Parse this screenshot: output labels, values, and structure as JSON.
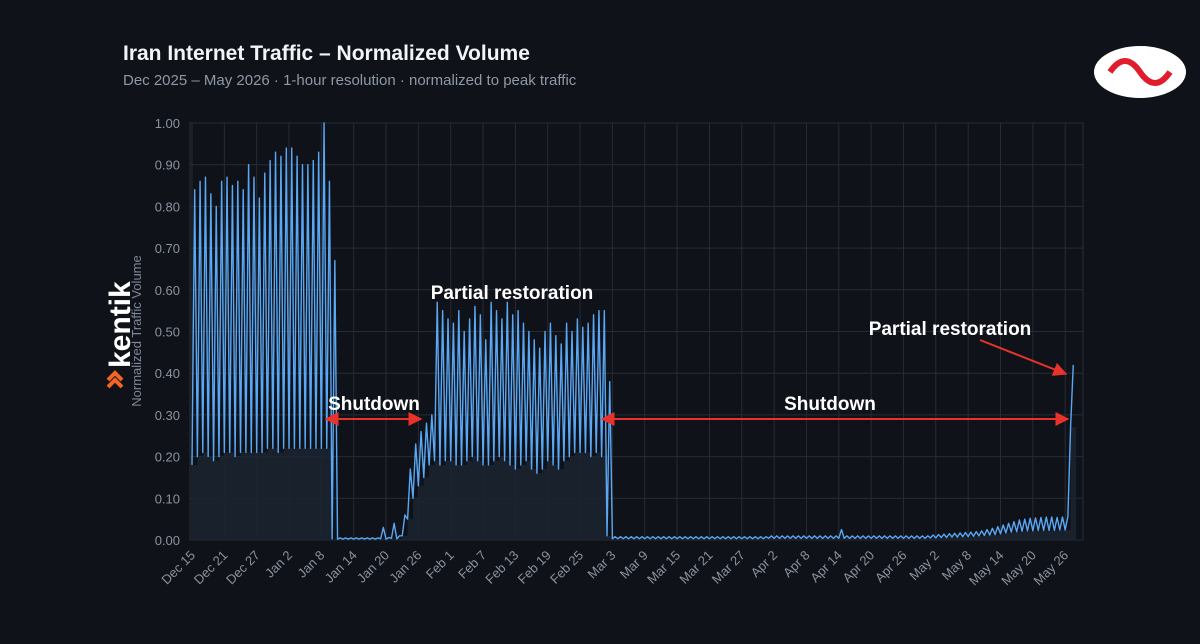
{
  "chart_data": {
    "type": "line",
    "title": "Iran Internet Traffic – Normalized Volume",
    "subtitle": "Dec 2025 – May 2026  ·  1-hour resolution  ·  normalized to peak traffic",
    "y_label": "Normalized Traffic Volume",
    "brand": "kentik",
    "annotations": [
      "Shutdown",
      "Partial restoration",
      "Shutdown",
      "Partial restoration"
    ],
    "grid": true,
    "ylim": [
      0,
      1
    ],
    "yticks": [
      {
        "value": 0,
        "label": "0.00"
      },
      {
        "value": 0.1,
        "label": "0.10"
      },
      {
        "value": 0.2,
        "label": "0.20"
      },
      {
        "value": 0.3,
        "label": "0.30"
      },
      {
        "value": 0.4,
        "label": "0.40"
      },
      {
        "value": 0.5,
        "label": "0.50"
      },
      {
        "value": 0.6,
        "label": "0.60"
      },
      {
        "value": 0.7,
        "label": "0.70"
      },
      {
        "value": 0.8,
        "label": "0.80"
      },
      {
        "value": 0.9,
        "label": "0.90"
      },
      {
        "value": 1,
        "label": "1.00"
      }
    ],
    "xticks": [
      "Dec 15",
      "Dec 21",
      "Dec 27",
      "Jan 2",
      "Jan 8",
      "Jan 14",
      "Jan 20",
      "Jan 26",
      "Feb 1",
      "Feb 7",
      "Feb 13",
      "Feb 19",
      "Feb 25",
      "Mar 3",
      "Mar 9",
      "Mar 15",
      "Mar 21",
      "Mar 27",
      "Apr 2",
      "Apr 8",
      "Apr 14",
      "Apr 20",
      "Apr 26",
      "May 2",
      "May 8",
      "May 14",
      "May 20",
      "May 26"
    ],
    "x": [
      "Dec 15",
      "Dec 16",
      "Dec 17",
      "Dec 18",
      "Dec 19",
      "Dec 20",
      "Dec 21",
      "Dec 22",
      "Dec 23",
      "Dec 24",
      "Dec 25",
      "Dec 26",
      "Dec 27",
      "Dec 28",
      "Dec 29",
      "Dec 30",
      "Dec 31",
      "Jan 1",
      "Jan 2",
      "Jan 3",
      "Jan 4",
      "Jan 5",
      "Jan 6",
      "Jan 7",
      "Jan 8",
      "Jan 9",
      "Jan 10",
      "Jan 11",
      "Jan 12",
      "Jan 13",
      "Jan 14",
      "Jan 15",
      "Jan 16",
      "Jan 17",
      "Jan 18",
      "Jan 19",
      "Jan 20",
      "Jan 21",
      "Jan 22",
      "Jan 23",
      "Jan 24",
      "Jan 25",
      "Jan 26",
      "Jan 27",
      "Jan 28",
      "Jan 29",
      "Jan 30",
      "Jan 31",
      "Feb 1",
      "Feb 2",
      "Feb 3",
      "Feb 4",
      "Feb 5",
      "Feb 6",
      "Feb 7",
      "Feb 8",
      "Feb 9",
      "Feb 10",
      "Feb 11",
      "Feb 12",
      "Feb 13",
      "Feb 14",
      "Feb 15",
      "Feb 16",
      "Feb 17",
      "Feb 18",
      "Feb 19",
      "Feb 20",
      "Feb 21",
      "Feb 22",
      "Feb 23",
      "Feb 24",
      "Feb 25",
      "Feb 26",
      "Feb 27",
      "Feb 28",
      "Mar 1",
      "Mar 2",
      "Mar 3",
      "Mar 4",
      "Mar 5",
      "Mar 6",
      "Mar 7",
      "Mar 8",
      "Mar 9",
      "Mar 10",
      "Mar 11",
      "Mar 12",
      "Mar 13",
      "Mar 14",
      "Mar 15",
      "Mar 16",
      "Mar 17",
      "Mar 18",
      "Mar 19",
      "Mar 20",
      "Mar 21",
      "Mar 22",
      "Mar 23",
      "Mar 24",
      "Mar 25",
      "Mar 26",
      "Mar 27",
      "Mar 28",
      "Mar 29",
      "Mar 30",
      "Mar 31",
      "Apr 1",
      "Apr 2",
      "Apr 3",
      "Apr 4",
      "Apr 5",
      "Apr 6",
      "Apr 7",
      "Apr 8",
      "Apr 9",
      "Apr 10",
      "Apr 11",
      "Apr 12",
      "Apr 13",
      "Apr 14",
      "Apr 15",
      "Apr 16",
      "Apr 17",
      "Apr 18",
      "Apr 19",
      "Apr 20",
      "Apr 21",
      "Apr 22",
      "Apr 23",
      "Apr 24",
      "Apr 25",
      "Apr 26",
      "Apr 27",
      "Apr 28",
      "Apr 29",
      "Apr 30",
      "May 1",
      "May 2",
      "May 3",
      "May 4",
      "May 5",
      "May 6",
      "May 7",
      "May 8",
      "May 9",
      "May 10",
      "May 11",
      "May 12",
      "May 13",
      "May 14",
      "May 15",
      "May 16",
      "May 17",
      "May 18",
      "May 19",
      "May 20",
      "May 21",
      "May 22",
      "May 23",
      "May 24",
      "May 25",
      "May 26",
      "May 27"
    ],
    "series": [
      {
        "color": "#5aa8f5",
        "values": [
          0.84,
          0.86,
          0.87,
          0.83,
          0.8,
          0.86,
          0.87,
          0.85,
          0.86,
          0.84,
          0.9,
          0.87,
          0.82,
          0.88,
          0.91,
          0.93,
          0.92,
          0.94,
          0.94,
          0.92,
          0.9,
          0.9,
          0.91,
          0.93,
          1.0,
          0.86,
          0.67,
          0.005,
          0.005,
          0.005,
          0.005,
          0.005,
          0.005,
          0.005,
          0.005,
          0.03,
          0.006,
          0.04,
          0.01,
          0.06,
          0.17,
          0.23,
          0.26,
          0.28,
          0.3,
          0.57,
          0.55,
          0.53,
          0.52,
          0.55,
          0.5,
          0.53,
          0.56,
          0.54,
          0.48,
          0.57,
          0.55,
          0.53,
          0.57,
          0.54,
          0.55,
          0.52,
          0.5,
          0.48,
          0.46,
          0.5,
          0.52,
          0.49,
          0.47,
          0.52,
          0.5,
          0.53,
          0.51,
          0.52,
          0.54,
          0.55,
          0.55,
          0.38,
          0.008,
          0.008,
          0.008,
          0.008,
          0.008,
          0.008,
          0.008,
          0.008,
          0.008,
          0.008,
          0.008,
          0.008,
          0.008,
          0.008,
          0.008,
          0.008,
          0.008,
          0.008,
          0.008,
          0.008,
          0.008,
          0.008,
          0.008,
          0.008,
          0.008,
          0.008,
          0.008,
          0.008,
          0.008,
          0.01,
          0.01,
          0.01,
          0.01,
          0.01,
          0.01,
          0.01,
          0.01,
          0.01,
          0.01,
          0.01,
          0.01,
          0.01,
          0.025,
          0.01,
          0.01,
          0.01,
          0.01,
          0.01,
          0.01,
          0.01,
          0.01,
          0.01,
          0.01,
          0.01,
          0.01,
          0.01,
          0.01,
          0.01,
          0.01,
          0.012,
          0.013,
          0.014,
          0.015,
          0.016,
          0.017,
          0.018,
          0.019,
          0.02,
          0.022,
          0.025,
          0.028,
          0.032,
          0.036,
          0.04,
          0.044,
          0.048,
          0.05,
          0.052,
          0.053,
          0.054,
          0.055,
          0.055,
          0.054,
          0.055,
          0.056,
          0.42
        ]
      },
      {
        "color": "#5aa8f5",
        "values": [
          0.18,
          0.2,
          0.21,
          0.2,
          0.19,
          0.2,
          0.21,
          0.21,
          0.2,
          0.21,
          0.21,
          0.21,
          0.21,
          0.21,
          0.22,
          0.22,
          0.21,
          0.22,
          0.22,
          0.22,
          0.22,
          0.22,
          0.22,
          0.22,
          0.22,
          0.22,
          0.003,
          0.002,
          0.002,
          0.002,
          0.002,
          0.002,
          0.002,
          0.002,
          0.002,
          0.003,
          0.002,
          0.004,
          0.003,
          0.01,
          0.05,
          0.1,
          0.13,
          0.15,
          0.18,
          0.19,
          0.18,
          0.19,
          0.19,
          0.18,
          0.18,
          0.19,
          0.2,
          0.19,
          0.18,
          0.18,
          0.19,
          0.2,
          0.19,
          0.18,
          0.17,
          0.18,
          0.19,
          0.17,
          0.16,
          0.17,
          0.19,
          0.18,
          0.17,
          0.19,
          0.2,
          0.21,
          0.21,
          0.21,
          0.2,
          0.21,
          0.2,
          0.01,
          0.003,
          0.003,
          0.003,
          0.003,
          0.003,
          0.003,
          0.003,
          0.003,
          0.003,
          0.003,
          0.003,
          0.003,
          0.003,
          0.003,
          0.003,
          0.003,
          0.003,
          0.003,
          0.003,
          0.003,
          0.003,
          0.003,
          0.003,
          0.003,
          0.003,
          0.003,
          0.003,
          0.003,
          0.003,
          0.004,
          0.004,
          0.004,
          0.004,
          0.004,
          0.004,
          0.004,
          0.004,
          0.004,
          0.004,
          0.004,
          0.004,
          0.004,
          0.004,
          0.004,
          0.004,
          0.004,
          0.004,
          0.004,
          0.004,
          0.004,
          0.004,
          0.004,
          0.004,
          0.004,
          0.004,
          0.004,
          0.004,
          0.004,
          0.004,
          0.005,
          0.005,
          0.006,
          0.006,
          0.007,
          0.007,
          0.008,
          0.008,
          0.009,
          0.01,
          0.011,
          0.012,
          0.013,
          0.015,
          0.017,
          0.019,
          0.02,
          0.021,
          0.022,
          0.022,
          0.023,
          0.023,
          0.023,
          0.023,
          0.024,
          0.024,
          0.27
        ]
      }
    ]
  }
}
